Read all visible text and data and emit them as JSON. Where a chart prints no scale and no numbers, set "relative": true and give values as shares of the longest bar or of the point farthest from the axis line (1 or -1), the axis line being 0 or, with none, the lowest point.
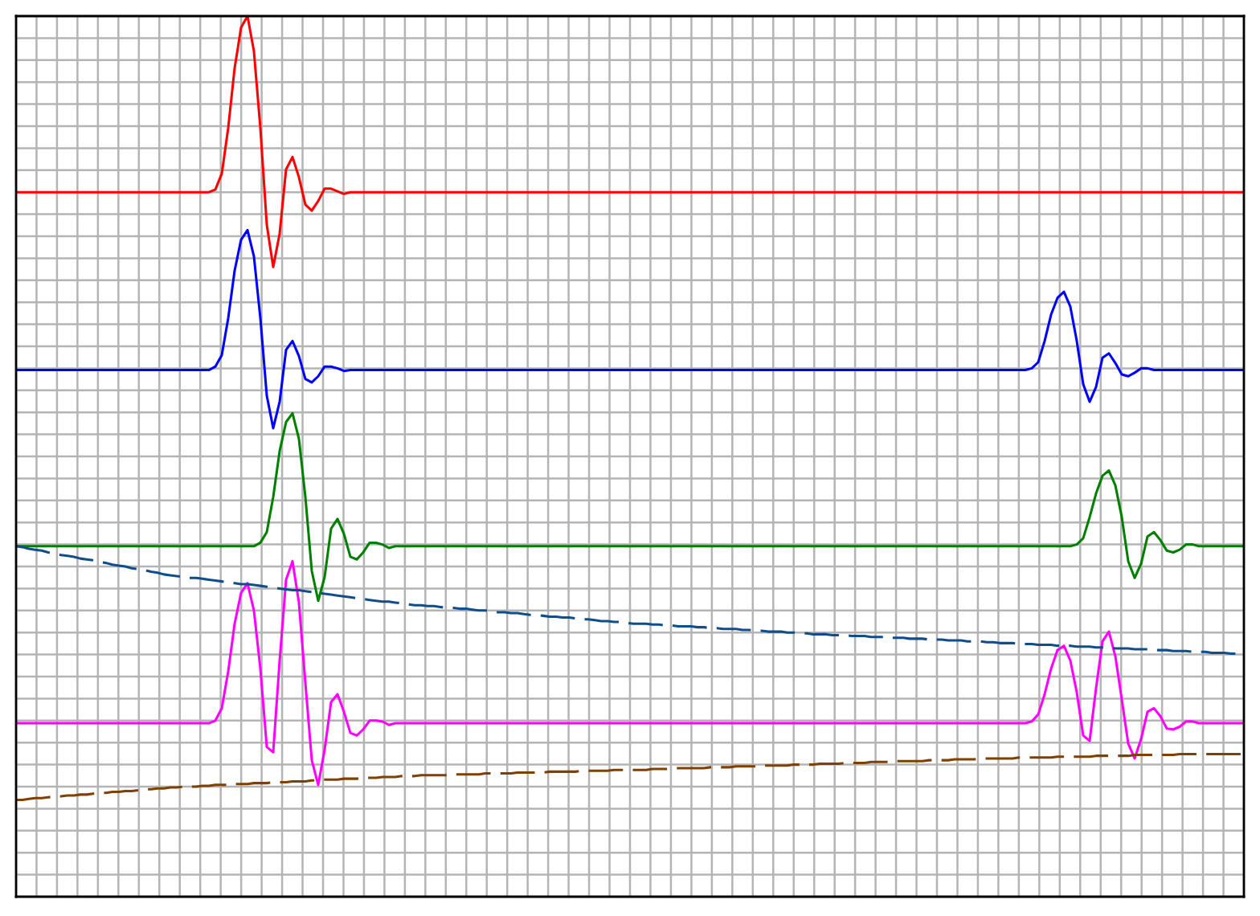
{
  "chart_data": {
    "type": "line",
    "relative": true,
    "grid": true,
    "tick_labels": false,
    "categories": [
      null,
      null,
      null,
      null,
      null,
      null,
      null,
      null,
      null,
      null,
      null,
      null,
      null,
      null,
      null,
      null,
      null,
      null,
      null,
      null,
      null,
      null,
      null,
      null,
      null,
      null,
      null,
      null,
      null,
      null,
      null,
      null,
      null,
      null,
      null,
      null,
      null,
      null,
      null,
      null,
      null,
      null,
      null,
      null,
      null,
      null,
      null,
      null,
      null,
      null,
      null,
      null,
      null,
      null,
      null,
      null,
      null,
      null,
      null,
      null,
      null,
      null,
      null,
      null,
      null,
      null,
      null,
      null,
      null,
      null,
      null,
      null,
      null,
      null,
      null,
      null,
      null,
      null,
      null,
      null,
      null,
      null,
      null,
      null,
      null,
      null,
      null,
      null,
      null,
      null,
      null,
      null,
      null,
      null,
      null,
      null,
      null,
      null,
      null,
      null,
      null,
      null,
      null,
      null,
      null,
      null,
      null,
      null,
      null,
      null,
      null,
      null,
      null,
      null,
      null,
      null,
      null,
      null,
      null,
      null,
      null,
      null,
      null,
      null,
      null,
      null,
      null,
      null,
      null,
      null,
      null,
      null,
      null,
      null,
      null,
      null,
      null,
      null,
      null,
      null,
      null,
      null,
      null,
      null,
      null,
      null,
      null,
      null,
      null,
      null,
      null,
      null,
      null,
      null,
      null,
      null,
      null,
      null,
      null,
      null,
      null,
      null,
      null,
      null,
      null,
      null,
      null,
      null,
      null,
      null,
      null,
      null,
      null,
      null,
      null,
      null,
      null,
      null,
      null,
      null,
      null,
      null,
      null,
      null,
      null,
      null,
      null,
      null,
      null,
      null,
      null,
      null
    ],
    "series": [
      {
        "color": "#ff0000",
        "values": [
          0.8,
          0.8,
          0.8,
          0.8,
          0.8,
          0.8,
          0.8,
          0.8,
          0.8,
          0.8,
          0.8,
          0.8,
          0.8,
          0.8,
          0.8,
          0.8,
          0.8,
          0.8,
          0.8,
          0.8,
          0.8,
          0.8,
          0.8,
          0.8,
          0.8,
          0.8,
          0.8,
          0.8,
          0.8,
          0.8,
          0.8,
          0.803,
          0.821,
          0.873,
          0.941,
          0.987,
          1.0,
          0.96,
          0.873,
          0.763,
          0.715,
          0.753,
          0.826,
          0.84,
          0.817,
          0.786,
          0.779,
          0.79,
          0.804,
          0.804,
          0.801,
          0.798,
          0.8,
          0.8,
          0.8,
          0.8,
          0.8,
          0.8,
          0.8,
          0.8,
          0.8,
          0.8,
          0.8,
          0.8,
          0.8,
          0.8,
          0.8,
          0.8,
          0.8,
          0.8,
          0.8,
          0.8,
          0.8,
          0.8,
          0.8,
          0.8,
          0.8,
          0.8,
          0.8,
          0.8,
          0.8,
          0.8,
          0.8,
          0.8,
          0.8,
          0.8,
          0.8,
          0.8,
          0.8,
          0.8,
          0.8,
          0.8,
          0.8,
          0.8,
          0.8,
          0.8,
          0.8,
          0.8,
          0.8,
          0.8,
          0.8,
          0.8,
          0.8,
          0.8,
          0.8,
          0.8,
          0.8,
          0.8,
          0.8,
          0.8,
          0.8,
          0.8,
          0.8,
          0.8,
          0.8,
          0.8,
          0.8,
          0.8,
          0.8,
          0.8,
          0.8,
          0.8,
          0.8,
          0.8,
          0.8,
          0.8,
          0.8,
          0.8,
          0.8,
          0.8,
          0.8,
          0.8,
          0.8,
          0.8,
          0.8,
          0.8,
          0.8,
          0.8,
          0.8,
          0.8,
          0.8,
          0.8,
          0.8,
          0.8,
          0.8,
          0.8,
          0.8,
          0.8,
          0.8,
          0.8,
          0.8,
          0.8,
          0.8,
          0.8,
          0.8,
          0.8,
          0.8,
          0.8,
          0.8,
          0.8,
          0.8,
          0.8,
          0.8,
          0.8,
          0.8,
          0.8,
          0.8,
          0.8,
          0.8,
          0.8,
          0.8,
          0.8,
          0.8,
          0.8,
          0.8,
          0.8,
          0.8,
          0.8,
          0.8,
          0.8,
          0.8,
          0.8,
          0.8,
          0.8,
          0.8,
          0.8,
          0.8,
          0.8,
          0.8,
          0.8,
          0.8,
          0.8
        ]
      },
      {
        "color": "#0000ff",
        "values": [
          0.598,
          0.598,
          0.598,
          0.598,
          0.598,
          0.598,
          0.598,
          0.598,
          0.598,
          0.598,
          0.598,
          0.598,
          0.598,
          0.598,
          0.598,
          0.598,
          0.598,
          0.598,
          0.598,
          0.598,
          0.598,
          0.598,
          0.598,
          0.598,
          0.598,
          0.598,
          0.598,
          0.598,
          0.598,
          0.598,
          0.598,
          0.602,
          0.615,
          0.657,
          0.711,
          0.746,
          0.757,
          0.727,
          0.657,
          0.569,
          0.532,
          0.562,
          0.621,
          0.631,
          0.614,
          0.588,
          0.584,
          0.591,
          0.602,
          0.602,
          0.6,
          0.597,
          0.598,
          0.598,
          0.598,
          0.598,
          0.598,
          0.598,
          0.598,
          0.598,
          0.598,
          0.598,
          0.598,
          0.598,
          0.598,
          0.598,
          0.598,
          0.598,
          0.598,
          0.598,
          0.598,
          0.598,
          0.598,
          0.598,
          0.598,
          0.598,
          0.598,
          0.598,
          0.598,
          0.598,
          0.598,
          0.598,
          0.598,
          0.598,
          0.598,
          0.598,
          0.598,
          0.598,
          0.598,
          0.598,
          0.598,
          0.598,
          0.598,
          0.598,
          0.598,
          0.598,
          0.598,
          0.598,
          0.598,
          0.598,
          0.598,
          0.598,
          0.598,
          0.598,
          0.598,
          0.598,
          0.598,
          0.598,
          0.598,
          0.598,
          0.598,
          0.598,
          0.598,
          0.598,
          0.598,
          0.598,
          0.598,
          0.598,
          0.598,
          0.598,
          0.598,
          0.598,
          0.598,
          0.598,
          0.598,
          0.598,
          0.598,
          0.598,
          0.598,
          0.598,
          0.598,
          0.598,
          0.598,
          0.598,
          0.598,
          0.598,
          0.598,
          0.598,
          0.598,
          0.598,
          0.598,
          0.598,
          0.598,
          0.598,
          0.598,
          0.598,
          0.598,
          0.598,
          0.598,
          0.598,
          0.598,
          0.598,
          0.598,
          0.598,
          0.598,
          0.598,
          0.598,
          0.598,
          0.6,
          0.607,
          0.631,
          0.661,
          0.68,
          0.687,
          0.67,
          0.631,
          0.582,
          0.562,
          0.579,
          0.612,
          0.617,
          0.606,
          0.593,
          0.591,
          0.595,
          0.6,
          0.6,
          0.598,
          0.598,
          0.598,
          0.598,
          0.598,
          0.598,
          0.598,
          0.598,
          0.598,
          0.598,
          0.598,
          0.598,
          0.598,
          0.598,
          0.598
        ]
      },
      {
        "color": "#008000",
        "values": [
          0.398,
          0.398,
          0.398,
          0.398,
          0.398,
          0.398,
          0.398,
          0.398,
          0.398,
          0.398,
          0.398,
          0.398,
          0.398,
          0.398,
          0.398,
          0.398,
          0.398,
          0.398,
          0.398,
          0.398,
          0.398,
          0.398,
          0.398,
          0.398,
          0.398,
          0.398,
          0.398,
          0.398,
          0.398,
          0.398,
          0.398,
          0.398,
          0.398,
          0.398,
          0.398,
          0.398,
          0.398,
          0.398,
          0.402,
          0.414,
          0.454,
          0.506,
          0.539,
          0.549,
          0.52,
          0.454,
          0.37,
          0.336,
          0.363,
          0.418,
          0.429,
          0.412,
          0.386,
          0.383,
          0.391,
          0.402,
          0.402,
          0.4,
          0.396,
          0.398,
          0.398,
          0.398,
          0.398,
          0.398,
          0.398,
          0.398,
          0.398,
          0.398,
          0.398,
          0.398,
          0.398,
          0.398,
          0.398,
          0.398,
          0.398,
          0.398,
          0.398,
          0.398,
          0.398,
          0.398,
          0.398,
          0.398,
          0.398,
          0.398,
          0.398,
          0.398,
          0.398,
          0.398,
          0.398,
          0.398,
          0.398,
          0.398,
          0.398,
          0.398,
          0.398,
          0.398,
          0.398,
          0.398,
          0.398,
          0.398,
          0.398,
          0.398,
          0.398,
          0.398,
          0.398,
          0.398,
          0.398,
          0.398,
          0.398,
          0.398,
          0.398,
          0.398,
          0.398,
          0.398,
          0.398,
          0.398,
          0.398,
          0.398,
          0.398,
          0.398,
          0.398,
          0.398,
          0.398,
          0.398,
          0.398,
          0.398,
          0.398,
          0.398,
          0.398,
          0.398,
          0.398,
          0.398,
          0.398,
          0.398,
          0.398,
          0.398,
          0.398,
          0.398,
          0.398,
          0.398,
          0.398,
          0.398,
          0.398,
          0.398,
          0.398,
          0.398,
          0.398,
          0.398,
          0.398,
          0.398,
          0.398,
          0.398,
          0.398,
          0.398,
          0.398,
          0.398,
          0.398,
          0.398,
          0.398,
          0.398,
          0.398,
          0.398,
          0.398,
          0.398,
          0.398,
          0.4,
          0.407,
          0.431,
          0.458,
          0.478,
          0.484,
          0.467,
          0.431,
          0.381,
          0.362,
          0.378,
          0.409,
          0.414,
          0.405,
          0.393,
          0.391,
          0.394,
          0.4,
          0.4,
          0.398,
          0.398,
          0.398,
          0.398,
          0.398,
          0.398,
          0.398,
          0.398
        ]
      },
      {
        "color": "#ff00ff",
        "values": [
          0.197,
          0.197,
          0.197,
          0.197,
          0.197,
          0.197,
          0.197,
          0.197,
          0.197,
          0.197,
          0.197,
          0.197,
          0.197,
          0.197,
          0.197,
          0.197,
          0.197,
          0.197,
          0.197,
          0.197,
          0.197,
          0.197,
          0.197,
          0.197,
          0.197,
          0.197,
          0.197,
          0.197,
          0.197,
          0.197,
          0.197,
          0.2,
          0.214,
          0.256,
          0.31,
          0.345,
          0.356,
          0.325,
          0.259,
          0.17,
          0.164,
          0.268,
          0.36,
          0.381,
          0.334,
          0.243,
          0.155,
          0.127,
          0.167,
          0.221,
          0.23,
          0.21,
          0.186,
          0.183,
          0.19,
          0.2,
          0.2,
          0.199,
          0.195,
          0.197,
          0.197,
          0.197,
          0.197,
          0.197,
          0.197,
          0.197,
          0.197,
          0.197,
          0.197,
          0.197,
          0.197,
          0.197,
          0.197,
          0.197,
          0.197,
          0.197,
          0.197,
          0.197,
          0.197,
          0.197,
          0.197,
          0.197,
          0.197,
          0.197,
          0.197,
          0.197,
          0.197,
          0.197,
          0.197,
          0.197,
          0.197,
          0.197,
          0.197,
          0.197,
          0.197,
          0.197,
          0.197,
          0.197,
          0.197,
          0.197,
          0.197,
          0.197,
          0.197,
          0.197,
          0.197,
          0.197,
          0.197,
          0.197,
          0.197,
          0.197,
          0.197,
          0.197,
          0.197,
          0.197,
          0.197,
          0.197,
          0.197,
          0.197,
          0.197,
          0.197,
          0.197,
          0.197,
          0.197,
          0.197,
          0.197,
          0.197,
          0.197,
          0.197,
          0.197,
          0.197,
          0.197,
          0.197,
          0.197,
          0.197,
          0.197,
          0.197,
          0.197,
          0.197,
          0.197,
          0.197,
          0.197,
          0.197,
          0.197,
          0.197,
          0.197,
          0.197,
          0.197,
          0.197,
          0.197,
          0.197,
          0.197,
          0.197,
          0.197,
          0.197,
          0.197,
          0.197,
          0.197,
          0.197,
          0.199,
          0.207,
          0.23,
          0.259,
          0.28,
          0.285,
          0.268,
          0.232,
          0.183,
          0.177,
          0.237,
          0.29,
          0.301,
          0.273,
          0.224,
          0.174,
          0.157,
          0.179,
          0.21,
          0.214,
          0.205,
          0.191,
          0.19,
          0.193,
          0.199,
          0.199,
          0.197,
          0.197,
          0.197,
          0.197,
          0.197,
          0.197,
          0.197,
          0.197
        ]
      },
      {
        "color": "#104e8b",
        "line_style": "dashed",
        "values": [
          0.398,
          0.397,
          0.395,
          0.394,
          0.393,
          0.391,
          0.39,
          0.388,
          0.387,
          0.386,
          0.384,
          0.383,
          0.382,
          0.38,
          0.379,
          0.377,
          0.376,
          0.375,
          0.373,
          0.372,
          0.371,
          0.369,
          0.368,
          0.366,
          0.365,
          0.364,
          0.363,
          0.362,
          0.362,
          0.361,
          0.36,
          0.359,
          0.358,
          0.357,
          0.356,
          0.355,
          0.355,
          0.354,
          0.353,
          0.352,
          0.351,
          0.35,
          0.349,
          0.348,
          0.348,
          0.347,
          0.346,
          0.345,
          0.344,
          0.343,
          0.342,
          0.341,
          0.34,
          0.339,
          0.338,
          0.337,
          0.336,
          0.335,
          0.335,
          0.334,
          0.333,
          0.332,
          0.331,
          0.331,
          0.33,
          0.33,
          0.329,
          0.328,
          0.328,
          0.327,
          0.327,
          0.326,
          0.325,
          0.325,
          0.324,
          0.323,
          0.323,
          0.322,
          0.322,
          0.321,
          0.32,
          0.32,
          0.319,
          0.318,
          0.318,
          0.317,
          0.317,
          0.316,
          0.315,
          0.315,
          0.314,
          0.313,
          0.313,
          0.312,
          0.312,
          0.311,
          0.31,
          0.31,
          0.31,
          0.309,
          0.309,
          0.308,
          0.308,
          0.307,
          0.307,
          0.307,
          0.306,
          0.306,
          0.305,
          0.305,
          0.304,
          0.304,
          0.304,
          0.303,
          0.303,
          0.302,
          0.302,
          0.301,
          0.301,
          0.301,
          0.3,
          0.3,
          0.299,
          0.299,
          0.298,
          0.298,
          0.298,
          0.297,
          0.297,
          0.297,
          0.296,
          0.296,
          0.296,
          0.295,
          0.295,
          0.295,
          0.294,
          0.294,
          0.294,
          0.293,
          0.293,
          0.293,
          0.292,
          0.292,
          0.292,
          0.291,
          0.291,
          0.291,
          0.29,
          0.29,
          0.29,
          0.289,
          0.289,
          0.288,
          0.288,
          0.288,
          0.287,
          0.287,
          0.287,
          0.286,
          0.286,
          0.286,
          0.285,
          0.285,
          0.285,
          0.284,
          0.284,
          0.284,
          0.283,
          0.283,
          0.283,
          0.282,
          0.282,
          0.282,
          0.281,
          0.281,
          0.281,
          0.28,
          0.28,
          0.28,
          0.279,
          0.279,
          0.279,
          0.278,
          0.278,
          0.278,
          0.277,
          0.277,
          0.277,
          0.276,
          0.276,
          0.276
        ]
      },
      {
        "color": "#7f4000",
        "line_style": "dashed",
        "values": [
          0.11,
          0.11,
          0.111,
          0.112,
          0.112,
          0.113,
          0.113,
          0.114,
          0.115,
          0.115,
          0.116,
          0.116,
          0.117,
          0.118,
          0.118,
          0.119,
          0.119,
          0.12,
          0.12,
          0.121,
          0.122,
          0.122,
          0.123,
          0.123,
          0.124,
          0.124,
          0.125,
          0.125,
          0.125,
          0.126,
          0.126,
          0.127,
          0.127,
          0.127,
          0.128,
          0.128,
          0.128,
          0.129,
          0.129,
          0.129,
          0.13,
          0.13,
          0.13,
          0.131,
          0.131,
          0.131,
          0.132,
          0.132,
          0.133,
          0.133,
          0.133,
          0.134,
          0.134,
          0.134,
          0.135,
          0.135,
          0.135,
          0.136,
          0.136,
          0.136,
          0.137,
          0.137,
          0.137,
          0.138,
          0.138,
          0.138,
          0.138,
          0.138,
          0.139,
          0.139,
          0.139,
          0.139,
          0.139,
          0.14,
          0.14,
          0.14,
          0.14,
          0.14,
          0.141,
          0.141,
          0.141,
          0.141,
          0.141,
          0.142,
          0.142,
          0.142,
          0.142,
          0.142,
          0.143,
          0.143,
          0.143,
          0.143,
          0.143,
          0.144,
          0.144,
          0.144,
          0.144,
          0.144,
          0.144,
          0.145,
          0.145,
          0.145,
          0.145,
          0.146,
          0.146,
          0.146,
          0.146,
          0.146,
          0.147,
          0.147,
          0.147,
          0.147,
          0.148,
          0.148,
          0.148,
          0.148,
          0.149,
          0.149,
          0.149,
          0.149,
          0.149,
          0.15,
          0.15,
          0.15,
          0.15,
          0.151,
          0.151,
          0.151,
          0.151,
          0.152,
          0.152,
          0.152,
          0.152,
          0.153,
          0.153,
          0.153,
          0.153,
          0.154,
          0.154,
          0.154,
          0.154,
          0.154,
          0.155,
          0.155,
          0.155,
          0.155,
          0.156,
          0.156,
          0.156,
          0.156,
          0.157,
          0.157,
          0.157,
          0.157,
          0.157,
          0.157,
          0.158,
          0.158,
          0.158,
          0.158,
          0.158,
          0.158,
          0.159,
          0.159,
          0.159,
          0.159,
          0.159,
          0.159,
          0.16,
          0.16,
          0.16,
          0.16,
          0.16,
          0.16,
          0.161,
          0.161,
          0.161,
          0.161,
          0.161,
          0.161,
          0.161,
          0.162,
          0.162,
          0.162,
          0.162,
          0.162,
          0.162,
          0.162,
          0.162,
          0.162,
          0.162,
          0.162
        ]
      }
    ]
  }
}
